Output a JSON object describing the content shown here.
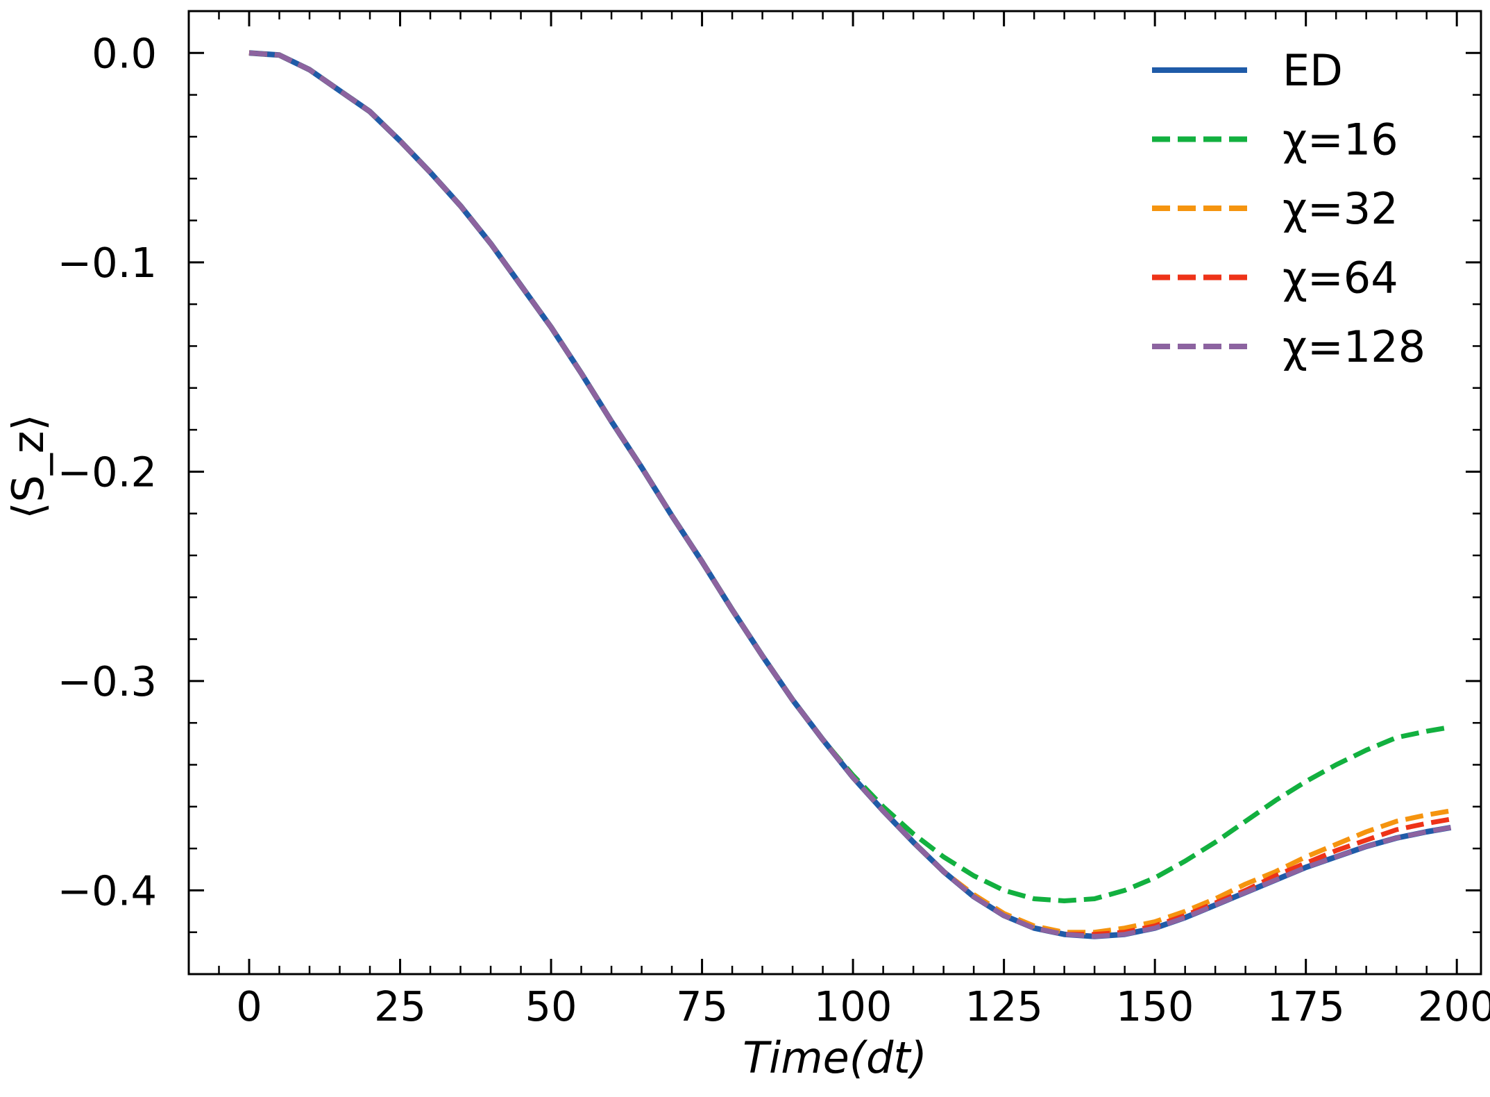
{
  "chart_data": {
    "type": "line",
    "xlabel": "Time(dt)",
    "ylabel": "⟨S_z⟩",
    "xlim": [
      -10,
      204
    ],
    "ylim": [
      -0.44,
      0.02
    ],
    "xticks": [
      0,
      25,
      50,
      75,
      100,
      125,
      150,
      175,
      200
    ],
    "yticks": [
      0.0,
      -0.1,
      -0.2,
      -0.3,
      -0.4
    ],
    "xtick_labels": [
      "0",
      "25",
      "50",
      "75",
      "100",
      "125",
      "150",
      "175",
      "200"
    ],
    "ytick_labels": [
      "0.0",
      "−0.1",
      "−0.2",
      "−0.3",
      "−0.4"
    ],
    "grid": false,
    "legend_position": "top-right",
    "x": [
      0,
      5,
      10,
      15,
      20,
      25,
      30,
      35,
      40,
      45,
      50,
      55,
      60,
      65,
      70,
      75,
      80,
      85,
      90,
      95,
      100,
      105,
      110,
      115,
      120,
      125,
      130,
      135,
      140,
      145,
      150,
      155,
      160,
      165,
      170,
      175,
      180,
      185,
      190,
      195,
      199
    ],
    "series": [
      {
        "name": "ED",
        "style": "solid",
        "color": "#1f5ba8",
        "values": [
          0.0,
          -0.001,
          -0.008,
          -0.018,
          -0.028,
          -0.042,
          -0.057,
          -0.073,
          -0.091,
          -0.111,
          -0.131,
          -0.153,
          -0.176,
          -0.198,
          -0.221,
          -0.243,
          -0.266,
          -0.288,
          -0.309,
          -0.328,
          -0.346,
          -0.362,
          -0.377,
          -0.391,
          -0.403,
          -0.412,
          -0.418,
          -0.421,
          -0.422,
          -0.421,
          -0.418,
          -0.413,
          -0.407,
          -0.401,
          -0.395,
          -0.389,
          -0.384,
          -0.379,
          -0.375,
          -0.372,
          -0.37
        ]
      },
      {
        "name": "χ=16",
        "style": "dashed",
        "color": "#12b03f",
        "values": [
          0.0,
          -0.001,
          -0.008,
          -0.018,
          -0.028,
          -0.042,
          -0.057,
          -0.073,
          -0.091,
          -0.111,
          -0.131,
          -0.153,
          -0.176,
          -0.198,
          -0.221,
          -0.243,
          -0.266,
          -0.288,
          -0.309,
          -0.328,
          -0.345,
          -0.36,
          -0.373,
          -0.384,
          -0.393,
          -0.4,
          -0.404,
          -0.405,
          -0.404,
          -0.4,
          -0.394,
          -0.386,
          -0.377,
          -0.367,
          -0.357,
          -0.348,
          -0.34,
          -0.333,
          -0.327,
          -0.324,
          -0.322
        ]
      },
      {
        "name": "χ=32",
        "style": "dashed",
        "color": "#f5940f",
        "values": [
          0.0,
          -0.001,
          -0.008,
          -0.018,
          -0.028,
          -0.042,
          -0.057,
          -0.073,
          -0.091,
          -0.111,
          -0.131,
          -0.153,
          -0.176,
          -0.198,
          -0.221,
          -0.243,
          -0.266,
          -0.288,
          -0.309,
          -0.328,
          -0.346,
          -0.362,
          -0.377,
          -0.391,
          -0.402,
          -0.411,
          -0.417,
          -0.42,
          -0.42,
          -0.418,
          -0.415,
          -0.41,
          -0.404,
          -0.397,
          -0.391,
          -0.384,
          -0.378,
          -0.372,
          -0.367,
          -0.364,
          -0.362
        ]
      },
      {
        "name": "χ=64",
        "style": "dashed",
        "color": "#ee3318",
        "values": [
          0.0,
          -0.001,
          -0.008,
          -0.018,
          -0.028,
          -0.042,
          -0.057,
          -0.073,
          -0.091,
          -0.111,
          -0.131,
          -0.153,
          -0.176,
          -0.198,
          -0.221,
          -0.243,
          -0.266,
          -0.288,
          -0.309,
          -0.328,
          -0.346,
          -0.362,
          -0.377,
          -0.391,
          -0.403,
          -0.412,
          -0.418,
          -0.421,
          -0.421,
          -0.42,
          -0.417,
          -0.412,
          -0.406,
          -0.4,
          -0.393,
          -0.387,
          -0.381,
          -0.376,
          -0.371,
          -0.368,
          -0.366
        ]
      },
      {
        "name": "χ=128",
        "style": "dashed",
        "color": "#8c63a0",
        "values": [
          0.0,
          -0.001,
          -0.008,
          -0.018,
          -0.028,
          -0.042,
          -0.057,
          -0.073,
          -0.091,
          -0.111,
          -0.131,
          -0.153,
          -0.176,
          -0.198,
          -0.221,
          -0.243,
          -0.266,
          -0.288,
          -0.309,
          -0.328,
          -0.346,
          -0.362,
          -0.377,
          -0.391,
          -0.403,
          -0.412,
          -0.418,
          -0.421,
          -0.422,
          -0.421,
          -0.418,
          -0.413,
          -0.407,
          -0.401,
          -0.395,
          -0.389,
          -0.384,
          -0.379,
          -0.375,
          -0.372,
          -0.37
        ]
      }
    ]
  }
}
